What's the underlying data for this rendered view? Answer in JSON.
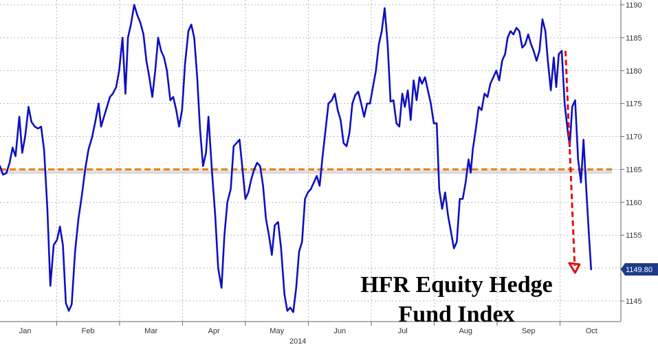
{
  "chart_data": {
    "type": "line",
    "title_lines": [
      "HFR Equity Hedge",
      "Fund Index"
    ],
    "ylim": [
      1142,
      1190
    ],
    "yticks": [
      1145,
      1150,
      1155,
      1160,
      1165,
      1170,
      1175,
      1180,
      1185,
      1190
    ],
    "month_ticks": [
      {
        "label": "Jan",
        "x": 0.6
      },
      {
        "label": "Feb",
        "x": 2.1
      },
      {
        "label": "Mar",
        "x": 3.6
      },
      {
        "label": "Apr",
        "x": 5.1
      },
      {
        "label": "May",
        "x": 6.6
      },
      {
        "label": "Jun",
        "x": 8.1
      },
      {
        "label": "Jul",
        "x": 9.6
      },
      {
        "label": "Aug",
        "x": 11.1
      },
      {
        "label": "Sep",
        "x": 12.6
      },
      {
        "label": "Oct",
        "x": 14.1
      }
    ],
    "year_label": {
      "label": "2014",
      "x": 7.1
    },
    "reference_level": 1165,
    "last_value_label": "1149.80",
    "colors": {
      "line": "#0f0fbf",
      "reference": "#e8820e",
      "arrow": "#e01010",
      "label_bg": "#1e3a8a"
    },
    "series": [
      {
        "values": [
          [
            0.0,
            1165.5
          ],
          [
            0.07,
            1164.2
          ],
          [
            0.15,
            1164.4
          ],
          [
            0.23,
            1166.0
          ],
          [
            0.3,
            1168.3
          ],
          [
            0.37,
            1167.0
          ],
          [
            0.46,
            1173.0
          ],
          [
            0.53,
            1167.5
          ],
          [
            0.6,
            1170.0
          ],
          [
            0.68,
            1174.5
          ],
          [
            0.75,
            1172.2
          ],
          [
            0.83,
            1171.5
          ],
          [
            0.91,
            1171.2
          ],
          [
            0.98,
            1171.5
          ],
          [
            1.05,
            1168.0
          ],
          [
            1.13,
            1159.0
          ],
          [
            1.2,
            1147.3
          ],
          [
            1.28,
            1153.5
          ],
          [
            1.36,
            1154.3
          ],
          [
            1.43,
            1156.3
          ],
          [
            1.5,
            1153.5
          ],
          [
            1.57,
            1144.7
          ],
          [
            1.64,
            1143.5
          ],
          [
            1.71,
            1144.5
          ],
          [
            1.79,
            1152.5
          ],
          [
            1.87,
            1157.5
          ],
          [
            1.95,
            1161.0
          ],
          [
            2.03,
            1165.0
          ],
          [
            2.11,
            1168.0
          ],
          [
            2.2,
            1170.0
          ],
          [
            2.28,
            1172.5
          ],
          [
            2.35,
            1175.0
          ],
          [
            2.41,
            1171.5
          ],
          [
            2.48,
            1173.0
          ],
          [
            2.55,
            1174.5
          ],
          [
            2.62,
            1176.0
          ],
          [
            2.69,
            1176.5
          ],
          [
            2.77,
            1177.5
          ],
          [
            2.84,
            1180.0
          ],
          [
            2.92,
            1185.0
          ],
          [
            2.99,
            1176.5
          ],
          [
            3.05,
            1185.0
          ],
          [
            3.12,
            1187.0
          ],
          [
            3.2,
            1190.0
          ],
          [
            3.27,
            1188.5
          ],
          [
            3.35,
            1187.2
          ],
          [
            3.42,
            1185.5
          ],
          [
            3.49,
            1181.5
          ],
          [
            3.56,
            1179.0
          ],
          [
            3.63,
            1176.0
          ],
          [
            3.7,
            1180.0
          ],
          [
            3.77,
            1185.0
          ],
          [
            3.84,
            1183.0
          ],
          [
            3.91,
            1182.0
          ],
          [
            3.98,
            1180.0
          ],
          [
            4.06,
            1175.5
          ],
          [
            4.13,
            1176.0
          ],
          [
            4.2,
            1174.0
          ],
          [
            4.27,
            1171.5
          ],
          [
            4.34,
            1174.0
          ],
          [
            4.41,
            1181.0
          ],
          [
            4.49,
            1186.0
          ],
          [
            4.56,
            1187.0
          ],
          [
            4.63,
            1185.0
          ],
          [
            4.7,
            1179.0
          ],
          [
            4.77,
            1171.0
          ],
          [
            4.84,
            1165.5
          ],
          [
            4.91,
            1167.5
          ],
          [
            4.97,
            1173.0
          ],
          [
            5.05,
            1165.0
          ],
          [
            5.13,
            1158.0
          ],
          [
            5.2,
            1150.0
          ],
          [
            5.28,
            1147.0
          ],
          [
            5.35,
            1155.0
          ],
          [
            5.42,
            1160.0
          ],
          [
            5.5,
            1162.0
          ],
          [
            5.57,
            1168.5
          ],
          [
            5.64,
            1169.0
          ],
          [
            5.71,
            1169.5
          ],
          [
            5.78,
            1165.0
          ],
          [
            5.85,
            1160.5
          ],
          [
            5.92,
            1161.5
          ],
          [
            5.99,
            1163.5
          ],
          [
            6.06,
            1165.0
          ],
          [
            6.13,
            1166.0
          ],
          [
            6.2,
            1165.5
          ],
          [
            6.27,
            1162.5
          ],
          [
            6.34,
            1157.5
          ],
          [
            6.41,
            1155.0
          ],
          [
            6.48,
            1152.0
          ],
          [
            6.55,
            1156.5
          ],
          [
            6.63,
            1157.0
          ],
          [
            6.7,
            1153.0
          ],
          [
            6.78,
            1146.0
          ],
          [
            6.85,
            1143.5
          ],
          [
            6.92,
            1144.0
          ],
          [
            6.99,
            1143.3
          ],
          [
            7.06,
            1147.0
          ],
          [
            7.13,
            1152.5
          ],
          [
            7.2,
            1154.0
          ],
          [
            7.27,
            1160.5
          ],
          [
            7.34,
            1161.5
          ],
          [
            7.41,
            1162.0
          ],
          [
            7.48,
            1163.0
          ],
          [
            7.55,
            1164.0
          ],
          [
            7.62,
            1162.5
          ],
          [
            7.69,
            1167.0
          ],
          [
            7.76,
            1171.0
          ],
          [
            7.83,
            1175.0
          ],
          [
            7.91,
            1175.5
          ],
          [
            7.98,
            1176.5
          ],
          [
            8.05,
            1174.0
          ],
          [
            8.12,
            1172.5
          ],
          [
            8.19,
            1169.0
          ],
          [
            8.26,
            1168.5
          ],
          [
            8.33,
            1170.5
          ],
          [
            8.4,
            1175.0
          ],
          [
            8.47,
            1176.3
          ],
          [
            8.54,
            1176.8
          ],
          [
            8.61,
            1175.0
          ],
          [
            8.68,
            1173.0
          ],
          [
            8.75,
            1175.0
          ],
          [
            8.82,
            1175.0
          ],
          [
            8.89,
            1177.5
          ],
          [
            8.96,
            1180.0
          ],
          [
            9.03,
            1184.0
          ],
          [
            9.1,
            1186.0
          ],
          [
            9.17,
            1189.5
          ],
          [
            9.24,
            1184.0
          ],
          [
            9.31,
            1175.3
          ],
          [
            9.38,
            1175.5
          ],
          [
            9.45,
            1172.0
          ],
          [
            9.52,
            1171.5
          ],
          [
            9.59,
            1176.5
          ],
          [
            9.65,
            1174.5
          ],
          [
            9.72,
            1177.0
          ],
          [
            9.79,
            1172.5
          ],
          [
            9.86,
            1178.5
          ],
          [
            9.93,
            1175.5
          ],
          [
            10.0,
            1179.0
          ],
          [
            10.06,
            1178.0
          ],
          [
            10.13,
            1179.0
          ],
          [
            10.2,
            1177.0
          ],
          [
            10.27,
            1175.0
          ],
          [
            10.34,
            1172.0
          ],
          [
            10.41,
            1172.0
          ],
          [
            10.47,
            1162.0
          ],
          [
            10.54,
            1159.0
          ],
          [
            10.61,
            1161.5
          ],
          [
            10.68,
            1158.0
          ],
          [
            10.75,
            1155.5
          ],
          [
            10.82,
            1153.0
          ],
          [
            10.89,
            1154.0
          ],
          [
            10.96,
            1160.5
          ],
          [
            11.03,
            1160.5
          ],
          [
            11.1,
            1163.0
          ],
          [
            11.17,
            1166.5
          ],
          [
            11.22,
            1164.5
          ],
          [
            11.27,
            1168.0
          ],
          [
            11.34,
            1171.0
          ],
          [
            11.41,
            1174.5
          ],
          [
            11.48,
            1174.0
          ],
          [
            11.55,
            1176.5
          ],
          [
            11.62,
            1176.0
          ],
          [
            11.69,
            1178.0
          ],
          [
            11.76,
            1179.0
          ],
          [
            11.83,
            1180.0
          ],
          [
            11.9,
            1178.5
          ],
          [
            11.97,
            1181.5
          ],
          [
            12.04,
            1182.5
          ],
          [
            12.1,
            1185.0
          ],
          [
            12.17,
            1186.0
          ],
          [
            12.24,
            1185.5
          ],
          [
            12.31,
            1186.5
          ],
          [
            12.38,
            1186.0
          ],
          [
            12.45,
            1183.5
          ],
          [
            12.52,
            1184.0
          ],
          [
            12.59,
            1185.5
          ],
          [
            12.66,
            1184.0
          ],
          [
            12.72,
            1183.0
          ],
          [
            12.79,
            1181.5
          ],
          [
            12.86,
            1183.0
          ],
          [
            12.93,
            1187.8
          ],
          [
            13.0,
            1186.0
          ],
          [
            13.06,
            1181.5
          ],
          [
            13.13,
            1177.0
          ],
          [
            13.2,
            1182.0
          ],
          [
            13.26,
            1177.5
          ],
          [
            13.32,
            1182.5
          ],
          [
            13.39,
            1183.0
          ],
          [
            13.46,
            1175.0
          ],
          [
            13.53,
            1171.0
          ],
          [
            13.58,
            1168.5
          ],
          [
            13.64,
            1174.5
          ],
          [
            13.71,
            1175.5
          ],
          [
            13.78,
            1166.5
          ],
          [
            13.85,
            1163.0
          ],
          [
            13.91,
            1169.5
          ],
          [
            13.97,
            1162.5
          ],
          [
            14.03,
            1156.0
          ],
          [
            14.09,
            1149.8
          ]
        ]
      }
    ]
  }
}
